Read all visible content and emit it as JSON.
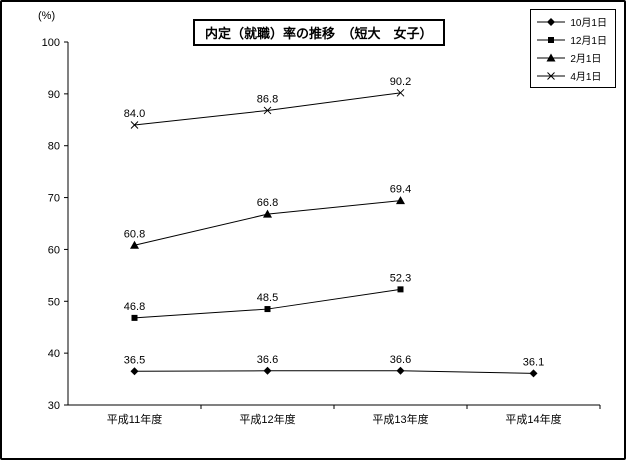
{
  "chart": {
    "title": "内定（就職）率の推移　（短大　女子）",
    "y_unit": "(%)"
  },
  "chart_data": {
    "type": "line",
    "title": "内定（就職）率の推移　（短大　女子）",
    "categories": [
      "平成11年度",
      "平成12年度",
      "平成13年度",
      "平成14年度"
    ],
    "series": [
      {
        "name": "10月1日",
        "marker": "diamond",
        "values": [
          36.5,
          36.6,
          36.6,
          36.1
        ]
      },
      {
        "name": "12月1日",
        "marker": "square",
        "values": [
          46.8,
          48.5,
          52.3,
          null
        ]
      },
      {
        "name": "2月1日",
        "marker": "triangle",
        "values": [
          60.8,
          66.8,
          69.4,
          null
        ]
      },
      {
        "name": "4月1日",
        "marker": "x",
        "values": [
          84.0,
          86.8,
          90.2,
          null
        ]
      }
    ],
    "xlabel": "",
    "ylabel": "(%)",
    "ylim": [
      30,
      100
    ],
    "ytick_step": 10,
    "yticks": [
      30,
      40,
      50,
      60,
      70,
      80,
      90,
      100
    ],
    "grid": false,
    "legend_position": "top-right",
    "colors": {
      "line": "#000000",
      "text": "#000000",
      "background": "#ffffff"
    }
  }
}
